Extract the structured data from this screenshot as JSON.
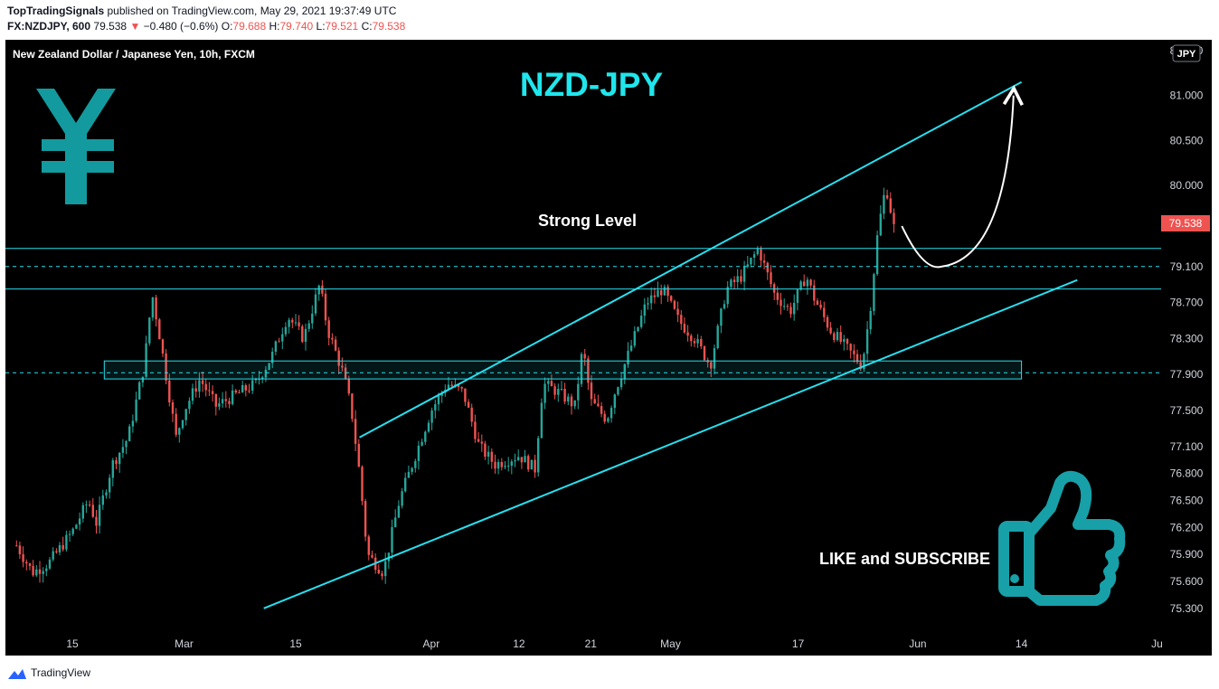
{
  "header": {
    "publisher": "TopTradingSignals",
    "published_text": "published on TradingView.com, May 29, 2021 19:37:49 UTC",
    "symbol": "FX:NZDJPY, 600",
    "last": "79.538",
    "change_arrow": "▼",
    "change": "−0.480 (−0.6%)",
    "o_label": "O:",
    "o_value": "79.688",
    "h_label": "H:",
    "h_value": "79.740",
    "l_label": "L:",
    "l_value": "79.521",
    "c_label": "C:",
    "c_value": "79.538"
  },
  "footer": {
    "brand": "TradingView",
    "logo_icon": "tradingview-logo-icon"
  },
  "colors": {
    "background": "#000000",
    "cyan": "#26e0f0",
    "title": "#1fe6ec",
    "up": "#26a69a",
    "down": "#ef5350",
    "yen": "#139a9e",
    "thumb": "#17a0a8"
  },
  "chart_data": {
    "type": "candlestick",
    "title": "NZD-JPY",
    "instrument": "New Zealand Dollar / Japanese Yen, 10h, FXCM",
    "currency_badge": "JPY",
    "ylim": [
      75.05,
      81.6
    ],
    "y_ticks": [
      "81.500",
      "81.000",
      "80.500",
      "80.000",
      "79.100",
      "78.700",
      "78.300",
      "77.900",
      "77.500",
      "77.100",
      "76.800",
      "76.500",
      "76.200",
      "75.900",
      "75.600",
      "75.300"
    ],
    "x_ticks": [
      "15",
      "Mar",
      "15",
      "Apr",
      "12",
      "21",
      "May",
      "17",
      "Jun",
      "14",
      "Ju"
    ],
    "x_dates": [
      "2021-02-15",
      "2021-03-01",
      "2021-03-15",
      "2021-04-01",
      "2021-04-12",
      "2021-04-21",
      "2021-05-01",
      "2021-05-17",
      "2021-06-01",
      "2021-06-14",
      "2021-07-01"
    ],
    "last_price": "79.538",
    "close_path": [
      [
        "2021-02-08",
        76.0
      ],
      [
        "2021-02-10",
        75.7
      ],
      [
        "2021-02-12",
        75.8
      ],
      [
        "2021-02-15",
        76.15
      ],
      [
        "2021-02-17",
        76.5
      ],
      [
        "2021-02-18",
        76.25
      ],
      [
        "2021-02-20",
        76.9
      ],
      [
        "2021-02-22",
        77.2
      ],
      [
        "2021-02-24",
        78.0
      ],
      [
        "2021-02-25",
        78.8
      ],
      [
        "2021-02-26",
        78.3
      ],
      [
        "2021-02-28",
        77.2
      ],
      [
        "2021-03-01",
        77.5
      ],
      [
        "2021-03-03",
        77.85
      ],
      [
        "2021-03-05",
        77.55
      ],
      [
        "2021-03-08",
        77.7
      ],
      [
        "2021-03-10",
        77.8
      ],
      [
        "2021-03-12",
        78.1
      ],
      [
        "2021-03-14",
        78.55
      ],
      [
        "2021-03-16",
        78.3
      ],
      [
        "2021-03-18",
        78.9
      ],
      [
        "2021-03-19",
        78.4
      ],
      [
        "2021-03-21",
        77.9
      ],
      [
        "2021-03-22",
        77.5
      ],
      [
        "2021-03-23",
        76.8
      ],
      [
        "2021-03-24",
        75.9
      ],
      [
        "2021-03-26",
        75.7
      ],
      [
        "2021-03-28",
        76.5
      ],
      [
        "2021-03-30",
        77.0
      ],
      [
        "2021-04-01",
        77.5
      ],
      [
        "2021-04-03",
        77.8
      ],
      [
        "2021-04-05",
        77.7
      ],
      [
        "2021-04-07",
        77.1
      ],
      [
        "2021-04-09",
        76.9
      ],
      [
        "2021-04-12",
        77.0
      ],
      [
        "2021-04-14",
        76.85
      ],
      [
        "2021-04-15",
        77.8
      ],
      [
        "2021-04-17",
        77.7
      ],
      [
        "2021-04-19",
        77.55
      ],
      [
        "2021-04-20",
        78.2
      ],
      [
        "2021-04-21",
        77.6
      ],
      [
        "2021-04-23",
        77.4
      ],
      [
        "2021-04-24",
        77.7
      ],
      [
        "2021-04-26",
        78.2
      ],
      [
        "2021-04-28",
        78.7
      ],
      [
        "2021-04-30",
        78.85
      ],
      [
        "2021-05-02",
        78.5
      ],
      [
        "2021-05-04",
        78.3
      ],
      [
        "2021-05-06",
        78.0
      ],
      [
        "2021-05-08",
        78.85
      ],
      [
        "2021-05-10",
        79.0
      ],
      [
        "2021-05-12",
        79.3
      ],
      [
        "2021-05-14",
        78.8
      ],
      [
        "2021-05-16",
        78.6
      ],
      [
        "2021-05-18",
        79.0
      ],
      [
        "2021-05-19",
        78.75
      ],
      [
        "2021-05-21",
        78.4
      ],
      [
        "2021-05-23",
        78.2
      ],
      [
        "2021-05-25",
        78.0
      ],
      [
        "2021-05-26",
        78.6
      ],
      [
        "2021-05-27",
        79.5
      ],
      [
        "2021-05-28",
        80.0
      ],
      [
        "2021-05-29",
        79.538
      ]
    ],
    "lines": {
      "upper_channel": {
        "from": [
          "2021-03-23",
          77.2
        ],
        "to": [
          "2021-06-14",
          81.15
        ]
      },
      "lower_channel": {
        "from": [
          "2021-03-11",
          75.3
        ],
        "to": [
          "2021-06-21",
          78.95
        ]
      },
      "strong_level_top": 79.3,
      "dashed_upper": 79.1,
      "strong_level_bottom": 78.85,
      "dashed_lower": 77.92,
      "support_zone": [
        77.85,
        78.05
      ],
      "support_zone_dates": [
        "2021-02-19",
        "2021-06-14"
      ],
      "projection_arrow": {
        "from": [
          "2021-05-30",
          79.55
        ],
        "low": [
          "2021-06-04",
          79.1
        ],
        "to": [
          "2021-06-13",
          81.0
        ]
      }
    },
    "annotations": {
      "strong_level": "Strong Level",
      "cta": "LIKE and SUBSCRIBE"
    },
    "icons": [
      "yen-icon",
      "thumbs-up-icon"
    ]
  }
}
